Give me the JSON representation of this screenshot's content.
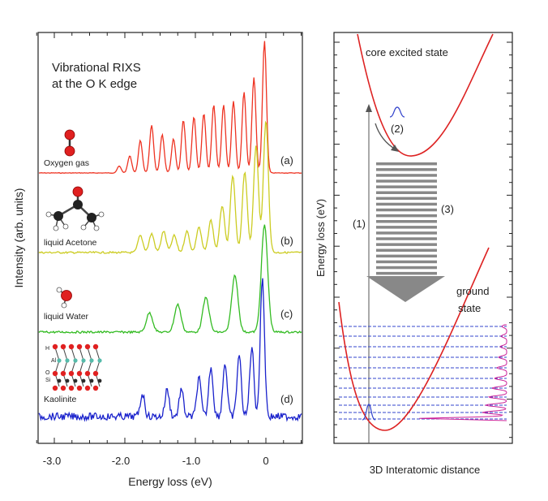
{
  "chart_data": [
    {
      "type": "line",
      "title": "Vibrational RIXS",
      "subtitle": "at the O K edge",
      "xlabel": "Energy loss (eV)",
      "ylabel": "Intensity (arb. units)",
      "xlim": [
        -3.3,
        0.5
      ],
      "xticks": [
        "-3.0",
        "-2.0",
        "-1.0",
        "0"
      ],
      "grid": false,
      "series": [
        {
          "name": "Oxygen gas",
          "tag": "(a)",
          "color": "#ee3322",
          "peaks": [
            [
              -2.08,
              0.08
            ],
            [
              -1.93,
              0.2
            ],
            [
              -1.78,
              0.38
            ],
            [
              -1.62,
              0.56
            ],
            [
              -1.47,
              0.45
            ],
            [
              -1.31,
              0.4
            ],
            [
              -1.17,
              0.62
            ],
            [
              -1.02,
              0.66
            ],
            [
              -0.88,
              0.7
            ],
            [
              -0.74,
              0.8
            ],
            [
              -0.6,
              0.8
            ],
            [
              -0.46,
              0.84
            ],
            [
              -0.31,
              0.95
            ],
            [
              -0.17,
              1.12
            ],
            [
              -0.02,
              1.55
            ]
          ]
        },
        {
          "name": "liquid Acetone",
          "tag": "(b)",
          "color": "#cccc22",
          "peaks": [
            [
              -1.78,
              0.2
            ],
            [
              -1.62,
              0.22
            ],
            [
              -1.45,
              0.25
            ],
            [
              -1.3,
              0.2
            ],
            [
              -1.12,
              0.25
            ],
            [
              -0.95,
              0.3
            ],
            [
              -0.78,
              0.38
            ],
            [
              -0.62,
              0.55
            ],
            [
              -0.47,
              0.9
            ],
            [
              -0.3,
              0.95
            ],
            [
              -0.14,
              1.25
            ],
            [
              0.0,
              1.55
            ]
          ]
        },
        {
          "name": "liquid Water",
          "tag": "(c)",
          "color": "#33bb22",
          "peaks": [
            [
              -1.65,
              0.28
            ],
            [
              -1.25,
              0.4
            ],
            [
              -0.85,
              0.5
            ],
            [
              -0.44,
              0.82
            ],
            [
              -0.02,
              1.55
            ]
          ]
        },
        {
          "name": "Kaolinite",
          "tag": "(d)",
          "color": "#1a22cc",
          "peaks": [
            [
              -1.75,
              0.3
            ],
            [
              -1.4,
              0.35
            ],
            [
              -1.2,
              0.35
            ],
            [
              -0.95,
              0.5
            ],
            [
              -0.78,
              0.65
            ],
            [
              -0.58,
              0.7
            ],
            [
              -0.38,
              0.8
            ],
            [
              -0.2,
              0.9
            ],
            [
              -0.05,
              1.8
            ]
          ]
        }
      ]
    },
    {
      "type": "line",
      "xlabel": "3D Interatomic distance",
      "ylabel": "Energy loss (eV)",
      "series": [
        {
          "name": "core excited state",
          "color": "#dd2222"
        },
        {
          "name": "ground state",
          "color": "#dd2222"
        }
      ]
    }
  ],
  "labels": {
    "core_excited": "core excited state",
    "ground_1": "ground",
    "ground_2": "state",
    "step1": "(1)",
    "step2": "(2)",
    "step3": "(3)",
    "atoms": {
      "h": "H",
      "al": "Al",
      "o": "O",
      "si": "Si"
    }
  }
}
